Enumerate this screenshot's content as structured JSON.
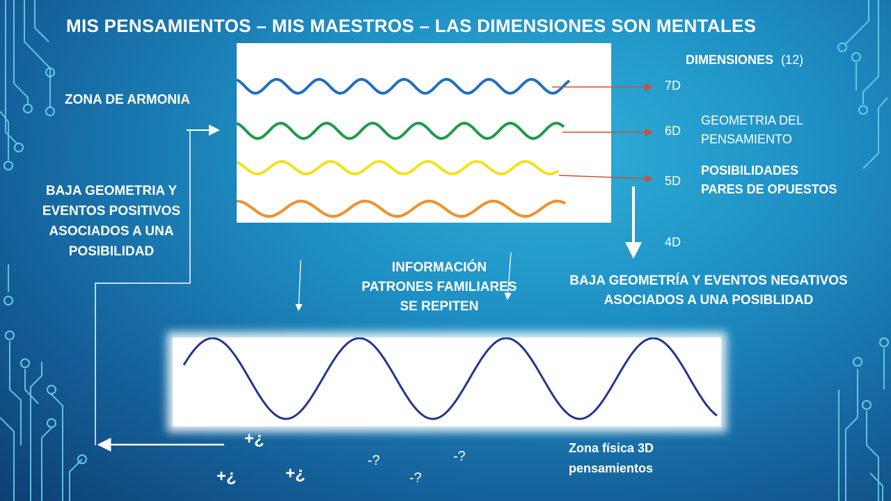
{
  "slide": {
    "title": "MIS PENSAMIENTOS – MIS MAESTROS – LAS DIMENSIONES SON MENTALES",
    "zona_armonia": "ZONA DE ARMONIA",
    "dimensiones_title": "DIMENSIONES",
    "dimensiones_count": "(12)",
    "dim_7d": "7D",
    "dim_6d": "6D",
    "dim_5d": "5D",
    "dim_4d": "4D",
    "geometria_line1": "GEOMETRIA DEL",
    "geometria_line2": "PENSAMIENTO",
    "posibilidades_line1": "POSIBILIDADES",
    "posibilidades_line2": "PARES DE OPUESTOS",
    "baja_pos_line1": "BAJA GEOMETRIA Y",
    "baja_pos_line2": "EVENTOS POSITIVOS",
    "baja_pos_line3": "ASOCIADOS A UNA",
    "baja_pos_line4": "POSIBILIDAD",
    "info_line1": "INFORMACIÓN",
    "info_line2": "PATRONES FAMILIARES",
    "info_line3": "SE REPITEN",
    "baja_neg_line1": "BAJA GEOMETRÍA Y EVENTOS NEGATIVOS",
    "baja_neg_line2": "ASOCIADOS A UNA POSIBLIDAD",
    "zona_fisica_line1": "Zona física 3D",
    "zona_fisica_line2": "pensamientos",
    "plus_symbol": "+¿",
    "minus_symbol": "-?"
  },
  "colors": {
    "wave_blue": "#1f6fbf",
    "wave_green": "#1f9a4a",
    "wave_yellow": "#f2e21a",
    "wave_orange": "#f0902a",
    "wave_dark_blue": "#1f3590",
    "arrow_red": "#c8503c"
  }
}
